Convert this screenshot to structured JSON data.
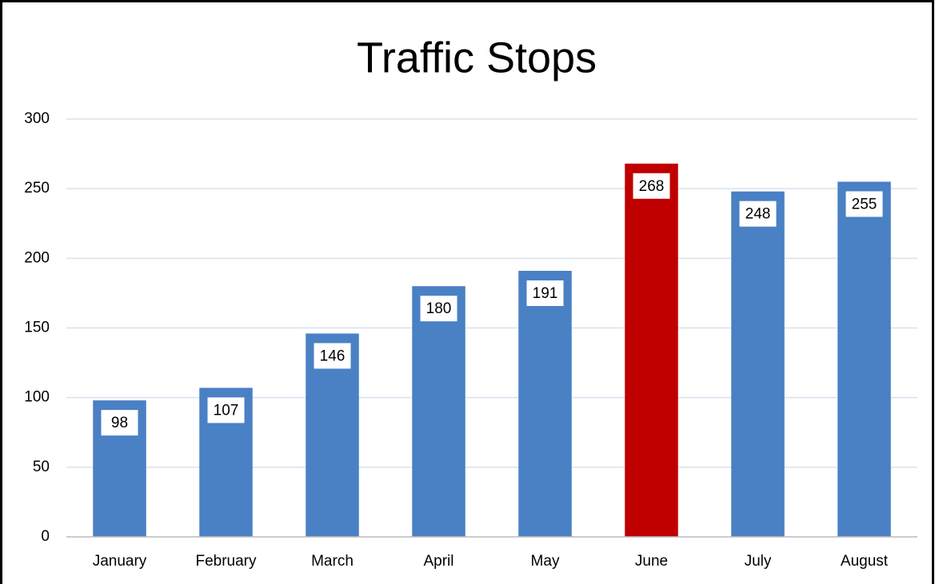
{
  "chart_data": {
    "type": "bar",
    "title": "Traffic Stops",
    "categories": [
      "January",
      "February",
      "March",
      "April",
      "May",
      "June",
      "July",
      "August"
    ],
    "values": [
      98,
      107,
      146,
      180,
      191,
      268,
      248,
      255
    ],
    "colors": [
      "#4a80c4",
      "#4a80c4",
      "#4a80c4",
      "#4a80c4",
      "#4a80c4",
      "#c00000",
      "#4a80c4",
      "#4a80c4"
    ],
    "ylim": [
      0,
      300
    ],
    "yticks": [
      0,
      50,
      100,
      150,
      200,
      250,
      300
    ],
    "grid": true
  }
}
